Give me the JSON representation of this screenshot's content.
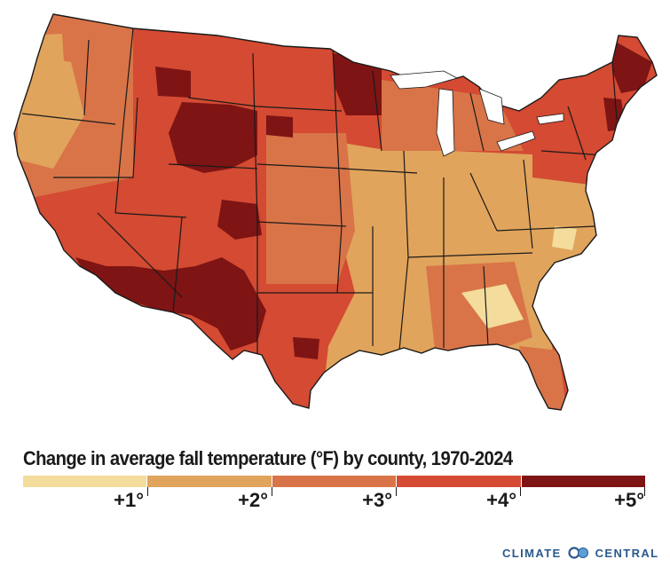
{
  "map": {
    "region": "Contiguous United States",
    "unit": "°F",
    "fill_scale": "Change in average fall temperature by county"
  },
  "title": "Change in average fall temperature (°F) by county, 1970-2024",
  "legend": {
    "colors": [
      "#f3dc9c",
      "#e1a45c",
      "#d97448",
      "#d44a32",
      "#7e1414"
    ],
    "ticks": [
      "+1°",
      "+2°",
      "+3°",
      "+4°",
      "+5°"
    ]
  },
  "brand": {
    "left": "CLIMATE",
    "right": "CENTRAL",
    "icon": "linked-circles-icon",
    "color": "#2a5a8c"
  }
}
